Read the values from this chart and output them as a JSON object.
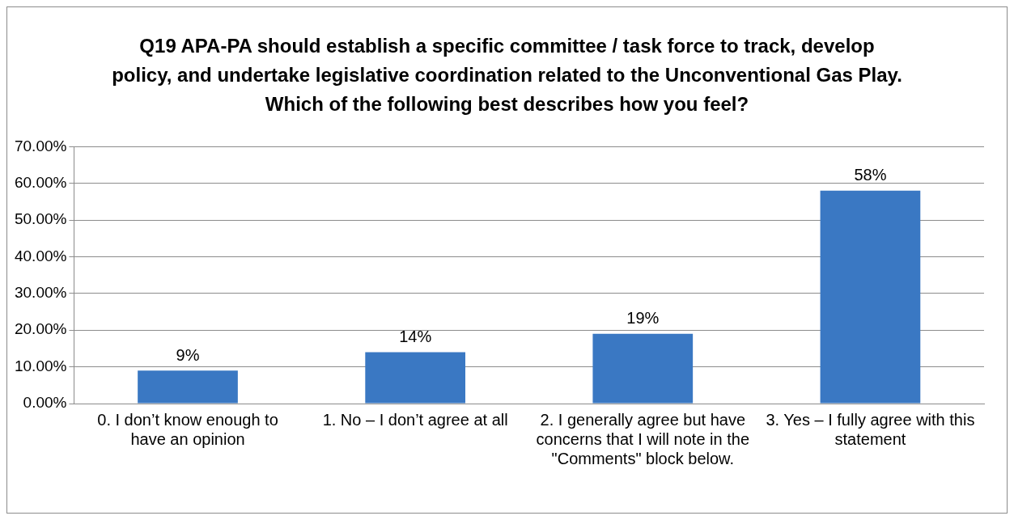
{
  "chart_data": {
    "type": "bar",
    "title": "Q19 APA-PA should establish a specific committee / task force to track, develop policy, and undertake legislative coordination related to the Unconventional Gas Play. Which of the following best describes how you feel?",
    "categories": [
      "0. I don’t know enough to have an opinion",
      "1. No – I don’t agree at all",
      "2. I generally agree but have concerns that I will note in the \"Comments\" block below.",
      "3. Yes – I fully agree with this statement"
    ],
    "values": [
      9,
      14,
      19,
      58
    ],
    "value_labels": [
      "9%",
      "14%",
      "19%",
      "58%"
    ],
    "color": "#3a78c3",
    "ylim": [
      0,
      70
    ],
    "yticks": [
      {
        "value": 0,
        "label": "0.00%"
      },
      {
        "value": 10,
        "label": "10.00%"
      },
      {
        "value": 20,
        "label": "20.00%"
      },
      {
        "value": 30,
        "label": "30.00%"
      },
      {
        "value": 40,
        "label": "40.00%"
      },
      {
        "value": 50,
        "label": "50.00%"
      },
      {
        "value": 60,
        "label": "60.00%"
      },
      {
        "value": 70,
        "label": "70.00%"
      }
    ],
    "grid": "y",
    "legend": false
  }
}
